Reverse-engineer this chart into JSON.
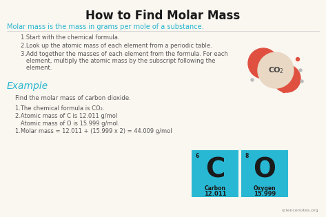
{
  "bg_color": "#faf6f0",
  "title": "How to Find Molar Mass",
  "title_color": "#1a1a1a",
  "subtitle": "Molar mass is the mass in grams per mole of a substance.",
  "subtitle_color": "#29b6d0",
  "step1": "1.Start with the chemical formula.",
  "step2": "2.Look up the atomic mass of each element from a periodic table.",
  "step3a": "3.Add together the masses of each element from the formula. For each",
  "step3b": "   element, multiply the atomic mass by the subscript following the",
  "step3c": "   element.",
  "steps_color": "#555555",
  "example_label": "Example",
  "example_color": "#29b6d0",
  "example_text": "Find the molar mass of carbon dioxide.",
  "example_text_color": "#555555",
  "bullet1": "1.The chemical formula is CO₂.",
  "bullet2": "2.Atomic mass of C is 12.011 g/mol",
  "bullet2b": "   Atomic mass of O is 15.999 g/mol.",
  "bullet3": "1.Molar mass = 12.011 + (15.999 x 2) = 44.009 g/mol",
  "bullets_color": "#555555",
  "carbon_box_color": "#29b8d4",
  "oxygen_box_color": "#29b8d4",
  "carbon_number": "6",
  "carbon_symbol": "C",
  "carbon_name": "Carbon",
  "carbon_mass": "12.011",
  "oxygen_number": "8",
  "oxygen_symbol": "O",
  "oxygen_name": "Oxygen",
  "oxygen_mass": "15.999",
  "element_text_color": "#1a1a1a",
  "co2_molecule_cream": "#e8d8c4",
  "co2_atom_red": "#e05040",
  "watermark": "sciencenotes.org"
}
